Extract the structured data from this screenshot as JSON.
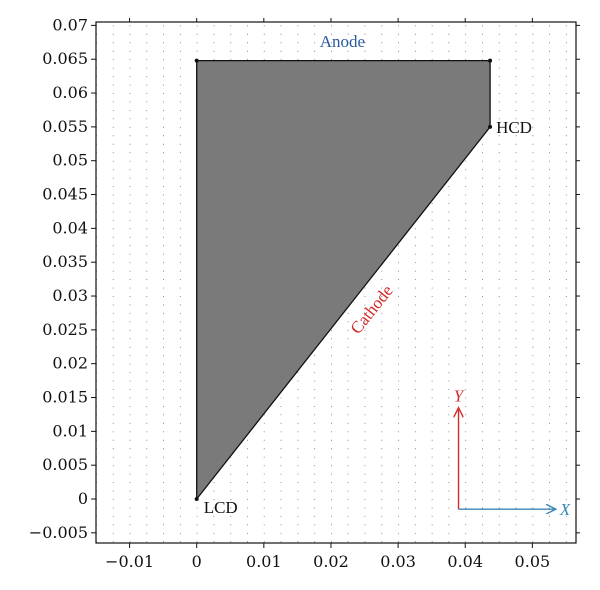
{
  "chart_data": {
    "type": "diagram",
    "title": "",
    "xlabel": "",
    "ylabel": "",
    "xlim": [
      -0.015,
      0.0565
    ],
    "ylim": [
      -0.0065,
      0.0705
    ],
    "x_ticks": [
      -0.01,
      0,
      0.01,
      0.02,
      0.03,
      0.04,
      0.05
    ],
    "x_tick_labels": [
      "−0.01",
      "0",
      "0.01",
      "0.02",
      "0.03",
      "0.04",
      "0.05"
    ],
    "y_ticks": [
      -0.005,
      0,
      0.005,
      0.01,
      0.015,
      0.02,
      0.025,
      0.03,
      0.035,
      0.04,
      0.045,
      0.05,
      0.055,
      0.06,
      0.065,
      0.07
    ],
    "y_tick_labels": [
      "−0.005",
      "0",
      "0.005",
      "0.01",
      "0.015",
      "0.02",
      "0.025",
      "0.03",
      "0.035",
      "0.04",
      "0.045",
      "0.05",
      "0.055",
      "0.06",
      "0.065",
      "0.07"
    ],
    "grid": "dotted",
    "region": {
      "fill": "#7a7a7a",
      "vertices": [
        [
          0,
          0
        ],
        [
          0.0437,
          0.055
        ],
        [
          0.0437,
          0.0648
        ],
        [
          0,
          0.0648
        ]
      ]
    },
    "points": [
      {
        "label": "LCD",
        "x": 0,
        "y": 0
      },
      {
        "label": "HCD",
        "x": 0.0437,
        "y": 0.055
      },
      {
        "label": "",
        "x": 0.0437,
        "y": 0.0648
      },
      {
        "label": "",
        "x": 0,
        "y": 0.0648
      }
    ],
    "boundary_labels": [
      {
        "text": "Anode",
        "x": 0.0217,
        "y": 0.0668,
        "angle": 0,
        "color": "#2b5a9e"
      },
      {
        "text": "Cathode",
        "x": 0.0267,
        "y": 0.0275,
        "angle": -51.5,
        "color": "#d42a2a"
      }
    ],
    "axes_glyph": {
      "origin": [
        0.039,
        -0.0015
      ],
      "x_end": [
        0.0535,
        -0.0015
      ],
      "y_end": [
        0.039,
        0.0135
      ],
      "x_label": "X",
      "y_label": "Y",
      "x_color": "#3a86b8",
      "y_color": "#d42a2a"
    }
  }
}
